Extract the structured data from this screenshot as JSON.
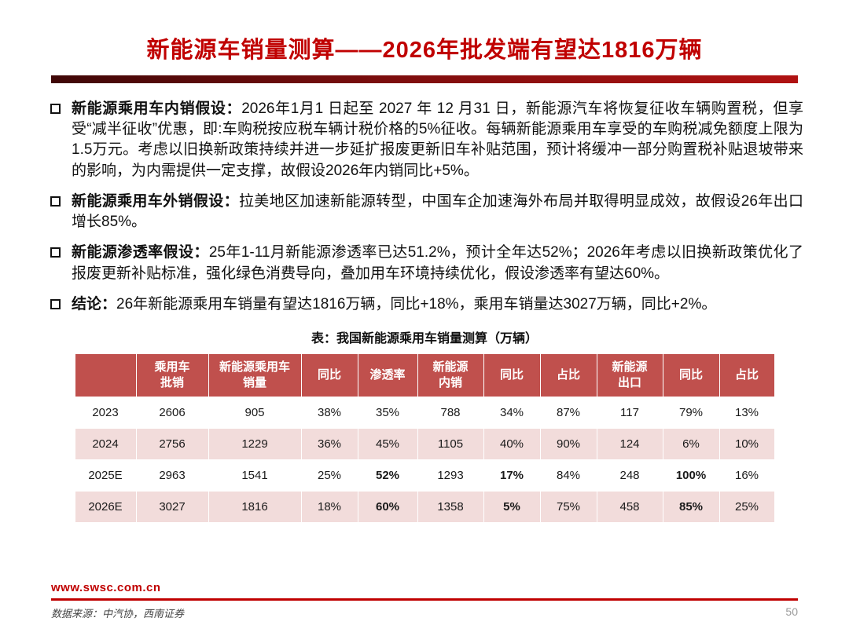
{
  "title": "新能源车销量测算——2026年批发端有望达1816万辆",
  "colors": {
    "title-red": "#c00000",
    "bar-dark": "#3f0707",
    "bar-red": "#b01212",
    "table-header": "#C0504D",
    "row-stripe": "#F2DCDB",
    "footer-red": "#c00000"
  },
  "bullets": [
    {
      "label": "新能源乘用车内销假设：",
      "text": "2026年1月1 日起至 2027 年 12 月31 日，新能源汽车将恢复征收车辆购置税，但享受“减半征收”优惠，即:车购税按应税车辆计税价格的5%征收。每辆新能源乘用车享受的车购税减免额度上限为1.5万元。考虑以旧换新政策持续并进一步延扩报废更新旧车补贴范围，预计将缓冲一部分购置税补贴退坡带来的影响，为内需提供一定支撑，故假设2026年内销同比+5%。"
    },
    {
      "label": "新能源乘用车外销假设：",
      "text": "拉美地区加速新能源转型，中国车企加速海外布局并取得明显成效，故假设26年出口增长85%。"
    },
    {
      "label": "新能源渗透率假设：",
      "text": "25年1-11月新能源渗透率已达51.2%，预计全年达52%；2026年考虑以旧换新政策优化了报废更新补贴标准，强化绿色消费导向，叠加用车环境持续优化，假设渗透率有望达60%。"
    },
    {
      "label": "结论：",
      "text": "26年新能源乘用车销量有望达1816万辆，同比+18%，乘用车销量达3027万辆，同比+2%。"
    }
  ],
  "table": {
    "caption": "表：我国新能源乘用车销量测算（万辆）",
    "columns": [
      "",
      "乘用车\n批销",
      "新能源乘用车\n销量",
      "同比",
      "渗透率",
      "新能源\n内销",
      "同比",
      "占比",
      "新能源\n出口",
      "同比",
      "占比"
    ],
    "rows": [
      {
        "year": "2023",
        "values": [
          "2606",
          "905",
          "38%",
          "35%",
          "788",
          "34%",
          "87%",
          "117",
          "79%",
          "13%"
        ],
        "bold": []
      },
      {
        "year": "2024",
        "values": [
          "2756",
          "1229",
          "36%",
          "45%",
          "1105",
          "40%",
          "90%",
          "124",
          "6%",
          "10%"
        ],
        "bold": []
      },
      {
        "year": "2025E",
        "values": [
          "2963",
          "1541",
          "25%",
          "52%",
          "1293",
          "17%",
          "84%",
          "248",
          "100%",
          "16%"
        ],
        "bold": [
          3,
          5,
          8
        ]
      },
      {
        "year": "2026E",
        "values": [
          "3027",
          "1816",
          "18%",
          "60%",
          "1358",
          "5%",
          "75%",
          "458",
          "85%",
          "25%"
        ],
        "bold": [
          3,
          5,
          8
        ]
      }
    ]
  },
  "footer": {
    "url": "www.swsc.com.cn",
    "source": "数据来源：中汽协，西南证券",
    "page": "50"
  }
}
